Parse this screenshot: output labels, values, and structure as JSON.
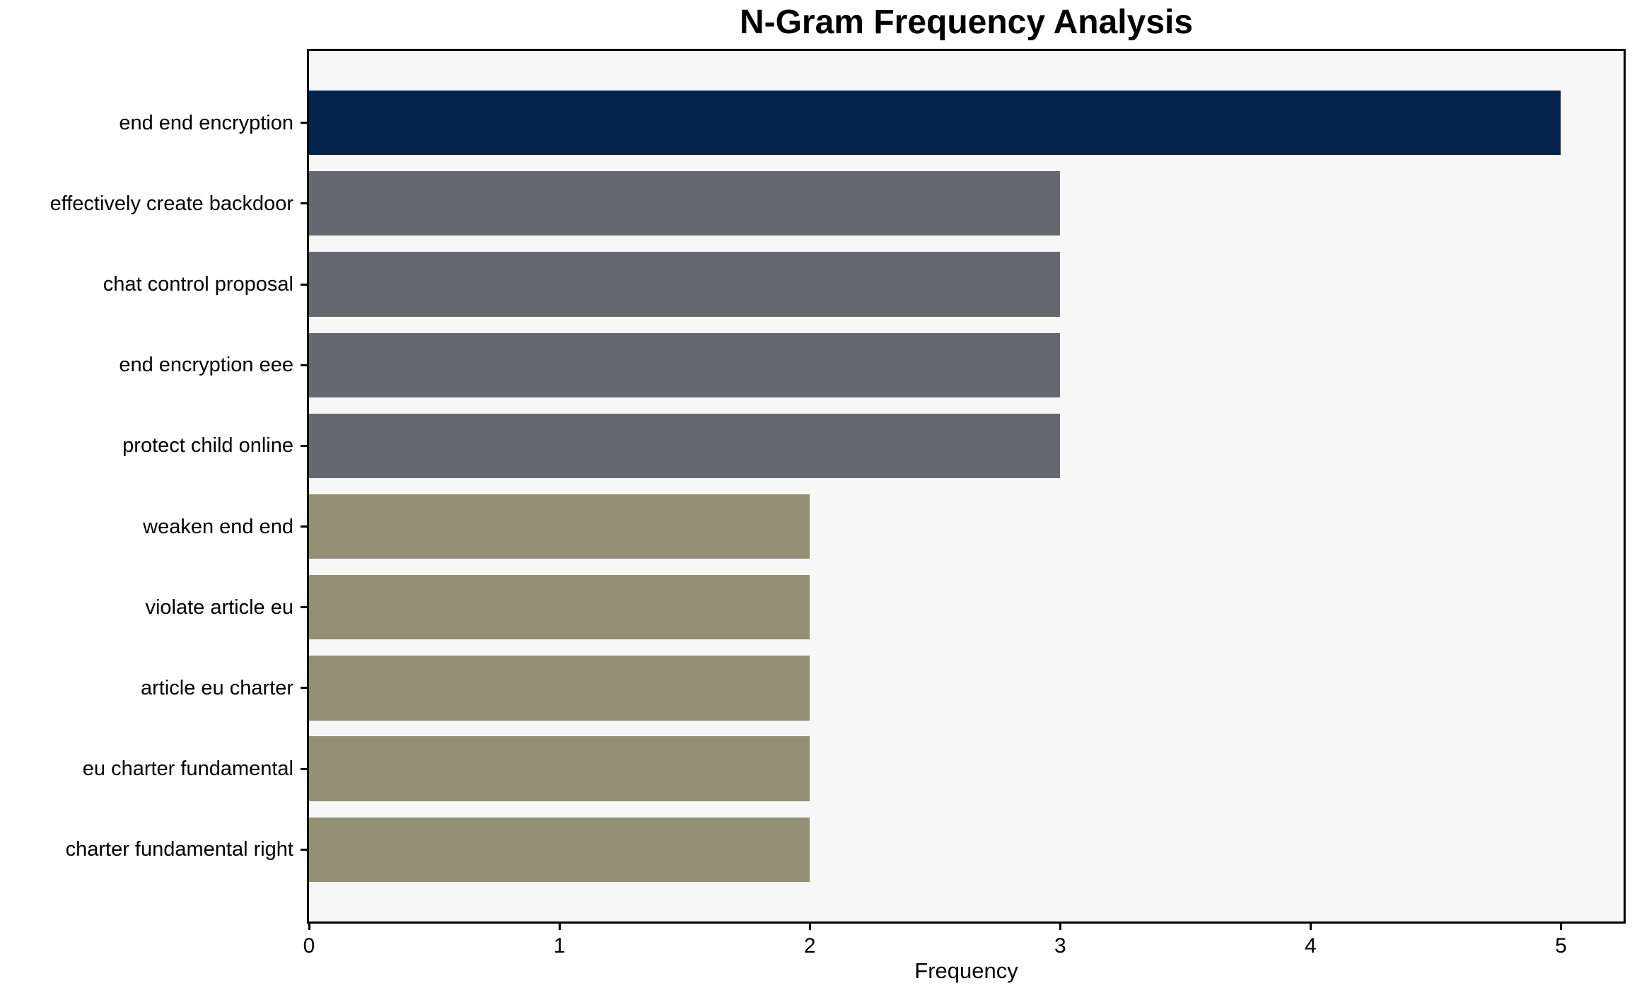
{
  "chart_data": {
    "type": "bar",
    "orientation": "horizontal",
    "title": "N-Gram Frequency Analysis",
    "xlabel": "Frequency",
    "ylabel": "",
    "categories": [
      "end end encryption",
      "effectively create backdoor",
      "chat control proposal",
      "end encryption eee",
      "protect child online",
      "weaken end end",
      "violate article eu",
      "article eu charter",
      "eu charter fundamental",
      "charter fundamental right"
    ],
    "values": [
      5,
      3,
      3,
      3,
      3,
      2,
      2,
      2,
      2,
      2
    ],
    "bar_colors": [
      "#03234c",
      "#66686f",
      "#66686f",
      "#66686f",
      "#66686f",
      "#948e74",
      "#948e74",
      "#948e74",
      "#948e74",
      "#948e74"
    ],
    "xlim": [
      0,
      5.25
    ],
    "x_ticks": [
      0,
      1,
      2,
      3,
      4,
      5
    ],
    "grid": false,
    "legend": null,
    "plot_background": "#f7f7f7",
    "figure_background": "#ffffff",
    "bar_fraction": 0.8
  }
}
